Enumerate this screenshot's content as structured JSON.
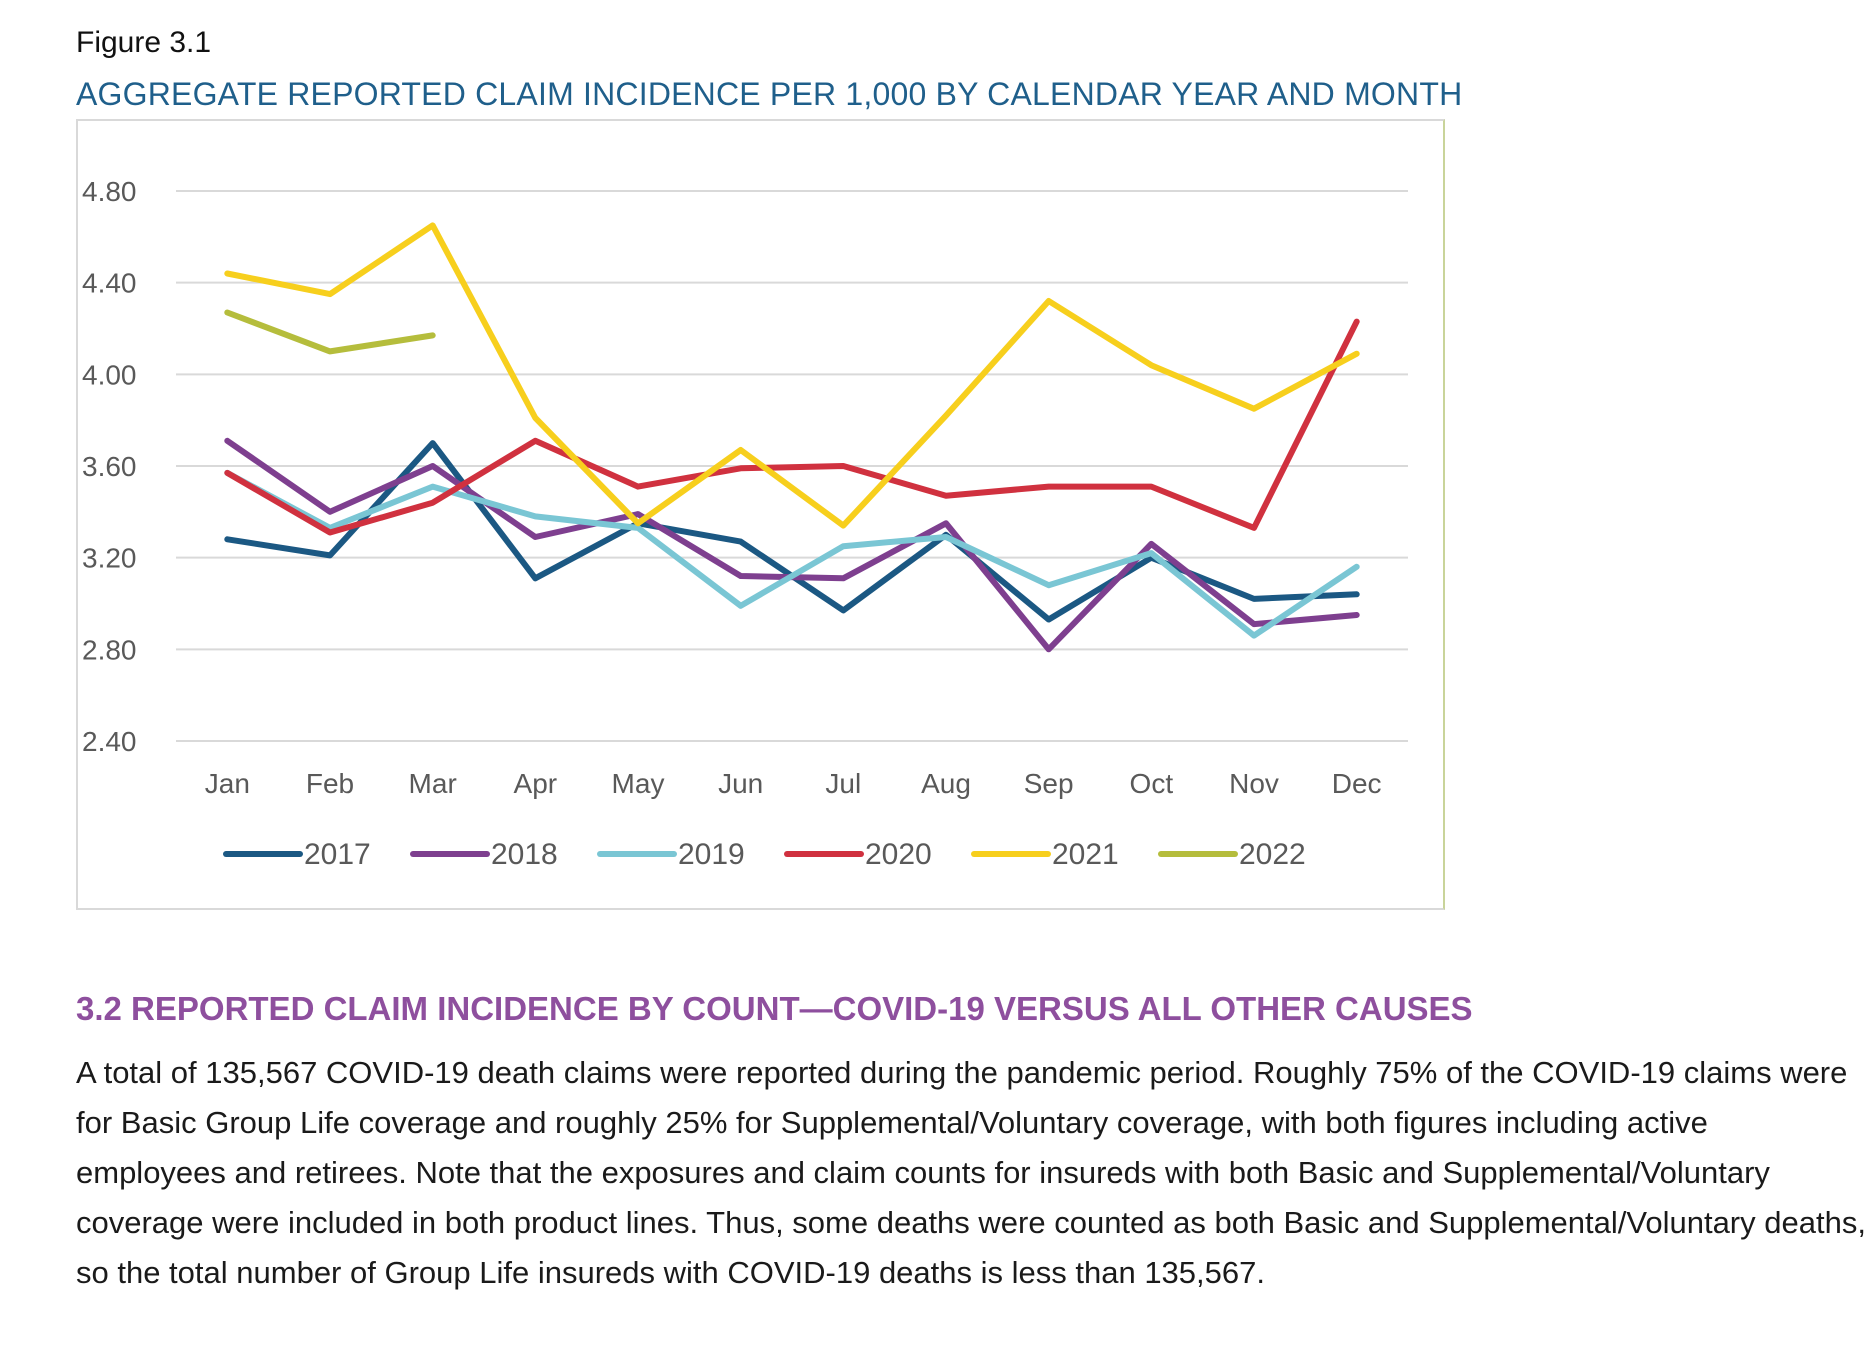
{
  "figure": {
    "label": "Figure 3.1",
    "title": "AGGREGATE REPORTED CLAIM INCIDENCE PER 1,000 BY CALENDAR YEAR AND MONTH"
  },
  "chart_data": {
    "type": "line",
    "title": "AGGREGATE REPORTED CLAIM INCIDENCE PER 1,000 BY CALENDAR YEAR AND MONTH",
    "xlabel": "",
    "ylabel": "",
    "categories": [
      "Jan",
      "Feb",
      "Mar",
      "Apr",
      "May",
      "Jun",
      "Jul",
      "Aug",
      "Sep",
      "Oct",
      "Nov",
      "Dec"
    ],
    "ylim": [
      2.4,
      4.8
    ],
    "yticks": [
      "2.40",
      "2.80",
      "3.20",
      "3.60",
      "4.00",
      "4.40",
      "4.80"
    ],
    "grid": true,
    "legend_position": "bottom",
    "series": [
      {
        "name": "2017",
        "color": "#1b5883",
        "values": [
          3.28,
          3.21,
          3.7,
          3.11,
          3.35,
          3.27,
          2.97,
          3.3,
          2.93,
          3.2,
          3.02,
          3.04
        ]
      },
      {
        "name": "2018",
        "color": "#7e3f8f",
        "values": [
          3.71,
          3.4,
          3.6,
          3.29,
          3.39,
          3.12,
          3.11,
          3.35,
          2.8,
          3.26,
          2.91,
          2.95
        ]
      },
      {
        "name": "2019",
        "color": "#7ac6d4",
        "values": [
          3.57,
          3.33,
          3.51,
          3.38,
          3.33,
          2.99,
          3.25,
          3.29,
          3.08,
          3.22,
          2.86,
          3.16
        ]
      },
      {
        "name": "2020",
        "color": "#d0313f",
        "values": [
          3.57,
          3.31,
          3.44,
          3.71,
          3.51,
          3.59,
          3.6,
          3.47,
          3.51,
          3.51,
          3.33,
          4.23
        ]
      },
      {
        "name": "2021",
        "color": "#f7cf1d",
        "values": [
          4.44,
          4.35,
          4.65,
          3.81,
          3.35,
          3.67,
          3.34,
          3.82,
          4.32,
          4.04,
          3.85,
          4.09
        ]
      },
      {
        "name": "2022",
        "color": "#b5bd3c",
        "values": [
          4.27,
          4.1,
          4.17,
          null,
          null,
          null,
          null,
          null,
          null,
          null,
          null,
          null
        ]
      }
    ]
  },
  "section": {
    "heading": "3.2 REPORTED CLAIM INCIDENCE BY COUNT—COVID-19 VERSUS ALL OTHER CAUSES",
    "paragraph": "A total of 135,567 COVID-19 death claims were reported during the pandemic period. Roughly 75% of the COVID-19 claims were for Basic Group Life coverage and roughly 25% for Supplemental/Voluntary coverage, with both figures including active employees and retirees. Note that the exposures and claim counts for insureds with both Basic and Supplemental/Voluntary coverage  were included in both product lines. Thus, some deaths were counted as both Basic and Supplemental/Voluntary deaths, so the total number of Group Life insureds with COVID-19 deaths is less than 135,567."
  }
}
